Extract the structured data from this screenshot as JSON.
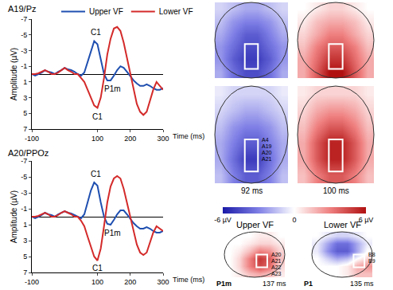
{
  "chart_data": [
    {
      "type": "line",
      "title": "A19/Pz",
      "y_label": "Amplitude (µV)",
      "x_label": "Time (ms)",
      "legend": "top",
      "grid": false,
      "x": [
        -100,
        -90,
        -80,
        -70,
        -60,
        -50,
        -40,
        -30,
        -20,
        -10,
        0,
        10,
        20,
        30,
        40,
        50,
        60,
        70,
        80,
        90,
        100,
        110,
        120,
        130,
        140,
        150,
        160,
        170,
        180,
        190,
        200,
        210,
        220,
        230,
        240,
        250,
        260,
        270,
        280,
        290,
        300
      ],
      "xlim": [
        -100,
        300
      ],
      "xticks": [
        -100,
        100,
        200,
        300
      ],
      "ylim": [
        7,
        -7
      ],
      "yticks": [
        -7,
        -5,
        -3,
        -1,
        1,
        3,
        5,
        7
      ],
      "series": [
        {
          "name": "Upper VF",
          "color": "#1f4fb0",
          "values": [
            0,
            0.2,
            0,
            -0.2,
            -0.5,
            -0.3,
            -0.2,
            0,
            -0.3,
            -0.5,
            -0.8,
            -0.6,
            -0.5,
            -0.3,
            0,
            0.2,
            -0.2,
            -1.5,
            -3,
            -4.2,
            -3.8,
            -1.8,
            0,
            0.8,
            0.8,
            0.2,
            -0.5,
            -1,
            -0.8,
            -0.3,
            0.3,
            0.8,
            1.2,
            1.5,
            1.5,
            1.3,
            1.5,
            1.8,
            2,
            2,
            1.8
          ]
        },
        {
          "name": "Lower VF",
          "color": "#d42a2a",
          "values": [
            0,
            0,
            -0.1,
            -0.3,
            -0.5,
            -0.3,
            0,
            0,
            -0.2,
            -0.5,
            -0.8,
            -0.5,
            -0.3,
            0,
            0,
            0.5,
            1,
            2,
            3,
            4,
            4.3,
            3,
            0.5,
            -2.5,
            -4.5,
            -5.8,
            -6,
            -5.5,
            -4,
            -2,
            0,
            2,
            3.8,
            4.8,
            5.2,
            4.8,
            3.5,
            2,
            1,
            1.5,
            2
          ]
        }
      ],
      "annotations": [
        {
          "text": "C1",
          "x": 95,
          "y": -5.3
        },
        {
          "text": "C1",
          "x": 100,
          "y": 5.4
        },
        {
          "text": "P1m",
          "x": 145,
          "y": 1.9
        }
      ]
    },
    {
      "type": "line",
      "title": "A20/PPOz",
      "y_label": "Amplitude (µV)",
      "x_label": "Time (ms)",
      "grid": false,
      "x": [
        -100,
        -90,
        -80,
        -70,
        -60,
        -50,
        -40,
        -30,
        -20,
        -10,
        0,
        10,
        20,
        30,
        40,
        50,
        60,
        70,
        80,
        90,
        100,
        110,
        120,
        130,
        140,
        150,
        160,
        170,
        180,
        190,
        200,
        210,
        220,
        230,
        240,
        250,
        260,
        270,
        280,
        290,
        300
      ],
      "xlim": [
        -100,
        300
      ],
      "xticks": [
        -100,
        100,
        200,
        300
      ],
      "ylim": [
        7,
        -7
      ],
      "yticks": [
        -7,
        -5,
        -3,
        -1,
        1,
        3,
        5,
        7
      ],
      "series": [
        {
          "name": "Upper VF",
          "color": "#1f4fb0",
          "values": [
            0,
            0.2,
            0,
            -0.2,
            -0.5,
            -0.3,
            -0.2,
            0,
            -0.3,
            -0.5,
            -0.7,
            -0.5,
            -0.4,
            -0.2,
            0,
            0.2,
            -0.3,
            -1.8,
            -3.3,
            -4.3,
            -3.9,
            -1.8,
            0,
            0.9,
            1,
            0.4,
            -0.3,
            -0.8,
            -0.8,
            -0.3,
            0.3,
            0.8,
            1.2,
            1.5,
            1.5,
            1.3,
            1.5,
            1.8,
            2,
            2,
            1.8
          ]
        },
        {
          "name": "Lower VF",
          "color": "#d42a2a",
          "values": [
            0,
            0,
            -0.1,
            -0.3,
            -0.5,
            -0.3,
            0,
            0,
            -0.2,
            -0.5,
            -0.7,
            -0.5,
            -0.3,
            0,
            0,
            0.5,
            1.2,
            2.5,
            3.8,
            5,
            5.5,
            4,
            1.2,
            -1.8,
            -3.8,
            -4.8,
            -5.1,
            -4.8,
            -3.5,
            -1.8,
            0,
            1.8,
            3.5,
            4.5,
            4.8,
            4.5,
            3.3,
            2,
            1.2,
            1.5,
            1.8
          ]
        }
      ],
      "annotations": [
        {
          "text": "C1",
          "x": 95,
          "y": -5.4
        },
        {
          "text": "C1",
          "x": 100,
          "y": 6.4
        },
        {
          "text": "P1m",
          "x": 145,
          "y": 2.0
        }
      ]
    },
    {
      "type": "heatmap",
      "zlim": [
        -6,
        6
      ],
      "zticks": [
        {
          "value": -6,
          "label": "-6 µV"
        },
        0,
        {
          "value": 6,
          "label": "6 µV"
        }
      ],
      "colors": [
        "#1a1aa8",
        "#7f7fe6",
        "#ffffff",
        "#ef7f7f",
        "#b01010"
      ],
      "maps": [
        {
          "cells": [
            [
              -1,
              -1.5,
              -2,
              -2,
              -1.5,
              -1
            ],
            [
              -1.5,
              -2.5,
              -3,
              -3,
              -2.5,
              -1.5
            ],
            [
              -2,
              -3,
              -4,
              -4,
              -3,
              -2
            ],
            [
              -2.5,
              -3.5,
              -4.5,
              -4.5,
              -3.5,
              -2.5
            ],
            [
              -2.5,
              -4,
              -5,
              -5,
              -4,
              -2.5
            ],
            [
              -2,
              -3.5,
              -4.5,
              -4.5,
              -3.5,
              -2
            ]
          ]
        },
        {
          "cells": [
            [
              0,
              0.5,
              1,
              1,
              0.5,
              0
            ],
            [
              0.5,
              1.5,
              2,
              2,
              1.5,
              0.5
            ],
            [
              1,
              2,
              3,
              3,
              2,
              1
            ],
            [
              1.5,
              3,
              4,
              4,
              3,
              1.5
            ],
            [
              2,
              3.5,
              5,
              5,
              3.5,
              2
            ],
            [
              2,
              4,
              6,
              6,
              4,
              2
            ]
          ]
        },
        {
          "cells": [
            [
              -0.5,
              -1,
              -1,
              -1,
              -1,
              -0.5
            ],
            [
              -1,
              -1.5,
              -2,
              -2,
              -1.5,
              -1
            ],
            [
              -1.5,
              -2.5,
              -3,
              -3,
              -2.5,
              -1.5
            ],
            [
              -2,
              -3,
              -4,
              -4,
              -3,
              -2
            ],
            [
              -2,
              -3.5,
              -5,
              -5,
              -3.5,
              -2
            ],
            [
              -1.5,
              -3,
              -4,
              -4,
              -3,
              -1.5
            ]
          ],
          "time": "92 ms",
          "electrodes": [
            "A4",
            "A19",
            "A20",
            "A21"
          ]
        },
        {
          "cells": [
            [
              0.5,
              1,
              1,
              1,
              1,
              0.5
            ],
            [
              1,
              2,
              2.5,
              2.5,
              2,
              1
            ],
            [
              1.5,
              3,
              4,
              4,
              3,
              1.5
            ],
            [
              2,
              4,
              5.5,
              5.5,
              4,
              2
            ],
            [
              2,
              4,
              5.5,
              5.5,
              4,
              2
            ],
            [
              1.5,
              3,
              4,
              4,
              3,
              1.5
            ]
          ],
          "time": "100 ms"
        },
        {
          "cells": [
            [
              0,
              0,
              0,
              0.5,
              0.5,
              0
            ],
            [
              0,
              0,
              0.5,
              1,
              1,
              0.5
            ],
            [
              0,
              0.5,
              1.5,
              3,
              2.5,
              1
            ],
            [
              0,
              1,
              3,
              5,
              4,
              1.5
            ],
            [
              0,
              1,
              3,
              4.5,
              3.5,
              1
            ],
            [
              0,
              0.5,
              1.5,
              2,
              1.5,
              0.5
            ]
          ],
          "title": "Upper VF",
          "component": "P1m",
          "time": "137 ms",
          "electrodes": [
            "A20",
            "A21",
            "A22",
            "A23"
          ]
        },
        {
          "cells": [
            [
              0,
              -0.5,
              -1,
              -1,
              -0.5,
              0
            ],
            [
              -0.5,
              -2,
              -3.5,
              -3.5,
              -2,
              -0.5
            ],
            [
              -0.5,
              -2.5,
              -4,
              -4,
              -2,
              0
            ],
            [
              0,
              -1,
              -2,
              -1.5,
              0,
              1
            ],
            [
              0,
              0,
              0,
              0.5,
              2,
              2.5
            ],
            [
              0,
              0,
              0,
              0.5,
              1.5,
              1.5
            ]
          ],
          "title": "Lower VF",
          "component": "P1",
          "time": "135 ms",
          "electrodes": [
            "B8",
            "B9"
          ]
        }
      ]
    }
  ]
}
